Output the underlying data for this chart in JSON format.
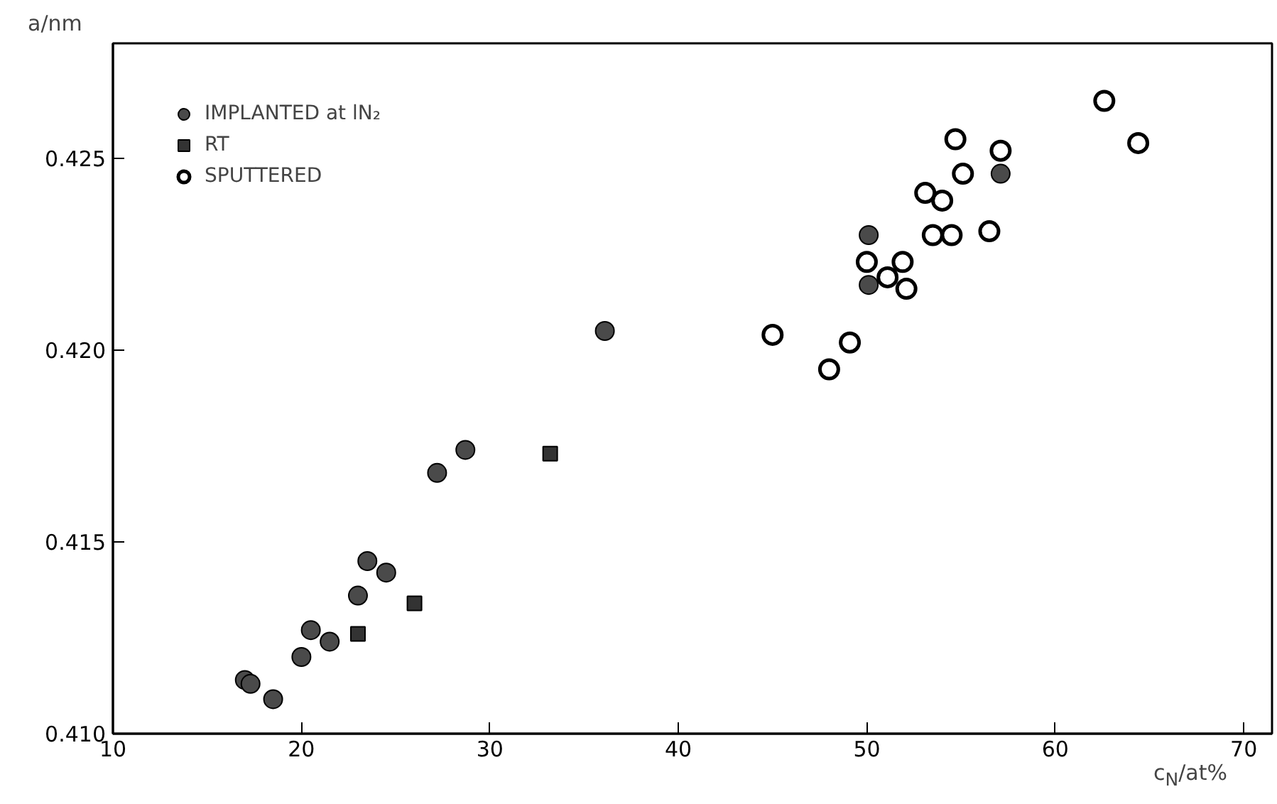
{
  "chart_data": {
    "type": "scatter",
    "xlabel": "c$_{N}$/at%",
    "ylabel": "a/nm",
    "xlim": [
      10,
      71.5
    ],
    "ylim": [
      0.41,
      0.428
    ],
    "xticks": [
      10,
      20,
      30,
      40,
      50,
      60,
      70
    ],
    "yticks": [
      {
        "value": 0.41,
        "label": "0.410"
      },
      {
        "value": 0.415,
        "label": "0.415"
      },
      {
        "value": 0.42,
        "label": "0.420"
      },
      {
        "value": 0.425,
        "label": "0.425"
      }
    ],
    "grid": false,
    "legend": "top left",
    "series": [
      {
        "name": "IMPLANTED at lN₂",
        "color": "#4a4a4a",
        "marker": "circle",
        "x": [
          17.0,
          17.3,
          18.5,
          20.0,
          20.5,
          21.5,
          23.0,
          23.5,
          24.5,
          27.2,
          28.7,
          36.1,
          50.1,
          50.1,
          57.1
        ],
        "values": [
          0.4114,
          0.4113,
          0.4109,
          0.412,
          0.4127,
          0.4124,
          0.4136,
          0.4145,
          0.4142,
          0.4168,
          0.4174,
          0.4205,
          0.423,
          0.4217,
          0.4246
        ]
      },
      {
        "name": "RT",
        "color": "#333333",
        "marker": "square",
        "x": [
          23.0,
          26.0,
          33.2
        ],
        "values": [
          0.4126,
          0.4134,
          0.4173
        ]
      },
      {
        "name": "SPUTTERED",
        "color": "#000000",
        "marker": "circle_open",
        "x": [
          45.0,
          49.1,
          48.0,
          50.0,
          51.9,
          51.1,
          52.1,
          53.5,
          54.5,
          56.5,
          53.1,
          54.0,
          55.1,
          54.7,
          57.1,
          62.6,
          64.4
        ],
        "values": [
          0.4204,
          0.4202,
          0.4195,
          0.4223,
          0.4223,
          0.4219,
          0.4216,
          0.423,
          0.423,
          0.4231,
          0.4241,
          0.4239,
          0.4246,
          0.4255,
          0.4252,
          0.4265,
          0.4254
        ]
      }
    ]
  }
}
